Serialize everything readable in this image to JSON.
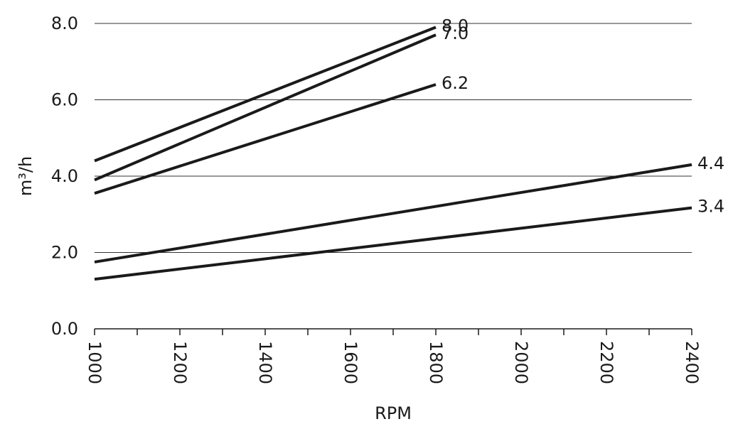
{
  "chart_data": {
    "type": "line",
    "xlabel": "RPM",
    "ylabel": "m³/h",
    "xlim": [
      1000,
      2400
    ],
    "ylim": [
      0,
      8
    ],
    "x_ticks": [
      "1000",
      "1200",
      "1400",
      "1600",
      "1800",
      "2000",
      "2200",
      "2400"
    ],
    "x_tick_values": [
      1000,
      1200,
      1400,
      1600,
      1800,
      2000,
      2200,
      2400
    ],
    "x_minor_tick_values": [
      1100,
      1300,
      1500,
      1700,
      1900,
      2100,
      2300
    ],
    "y_ticks": [
      "0.0",
      "2.0",
      "4.0",
      "6.0",
      "8.0"
    ],
    "y_tick_values": [
      0,
      2,
      4,
      6,
      8
    ],
    "grid": "horizontal",
    "line_color": "#1a1a1a",
    "grid_color": "#333333",
    "series": [
      {
        "name": "8.0",
        "x": [
          1000,
          1800
        ],
        "y": [
          4.4,
          7.9
        ]
      },
      {
        "name": "7.0",
        "x": [
          1000,
          1800
        ],
        "y": [
          3.9,
          7.7
        ]
      },
      {
        "name": "6.2",
        "x": [
          1000,
          1800
        ],
        "y": [
          3.55,
          6.4
        ]
      },
      {
        "name": "4.4",
        "x": [
          1000,
          2400
        ],
        "y": [
          1.75,
          4.3
        ]
      },
      {
        "name": "3.4",
        "x": [
          1000,
          2400
        ],
        "y": [
          1.3,
          3.17
        ]
      }
    ]
  }
}
